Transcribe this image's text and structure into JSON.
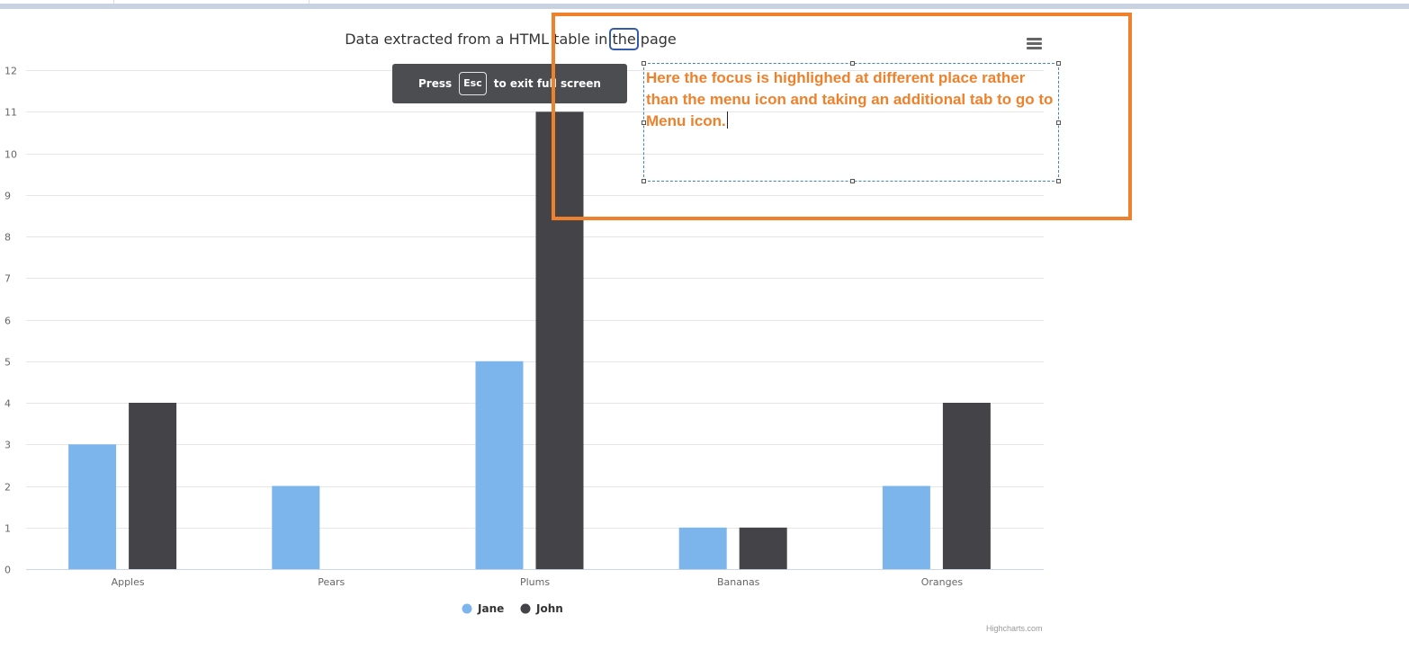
{
  "chart_data": {
    "type": "bar",
    "title": "Data extracted from a HTML table in the page",
    "title_parts": {
      "before": "Data extracted from a HTML table in ",
      "focused": "the",
      "after": " page"
    },
    "categories": [
      "Apples",
      "Pears",
      "Plums",
      "Bananas",
      "Oranges"
    ],
    "series": [
      {
        "name": "Jane",
        "color": "#7cb5ec",
        "values": [
          3,
          2,
          5,
          1,
          2
        ]
      },
      {
        "name": "John",
        "color": "#434348",
        "values": [
          4,
          0,
          11,
          1,
          4
        ]
      }
    ],
    "ylim": [
      0,
      12
    ],
    "yticks": [
      "0",
      "1",
      "2",
      "3",
      "4",
      "5",
      "6",
      "7",
      "8",
      "9",
      "10",
      "11",
      "12"
    ],
    "grid": true,
    "legend_position": "bottom-center",
    "credits": "Highcharts.com"
  },
  "toast": {
    "press": "Press",
    "key": "Esc",
    "rest": "to exit full screen"
  },
  "menu_icon": "hamburger-menu-icon",
  "annotation": {
    "text": "Here the focus is highlighed at different place rather than the menu icon and taking an additional tab to go to Menu icon.",
    "frame_color": "#f0812c"
  }
}
